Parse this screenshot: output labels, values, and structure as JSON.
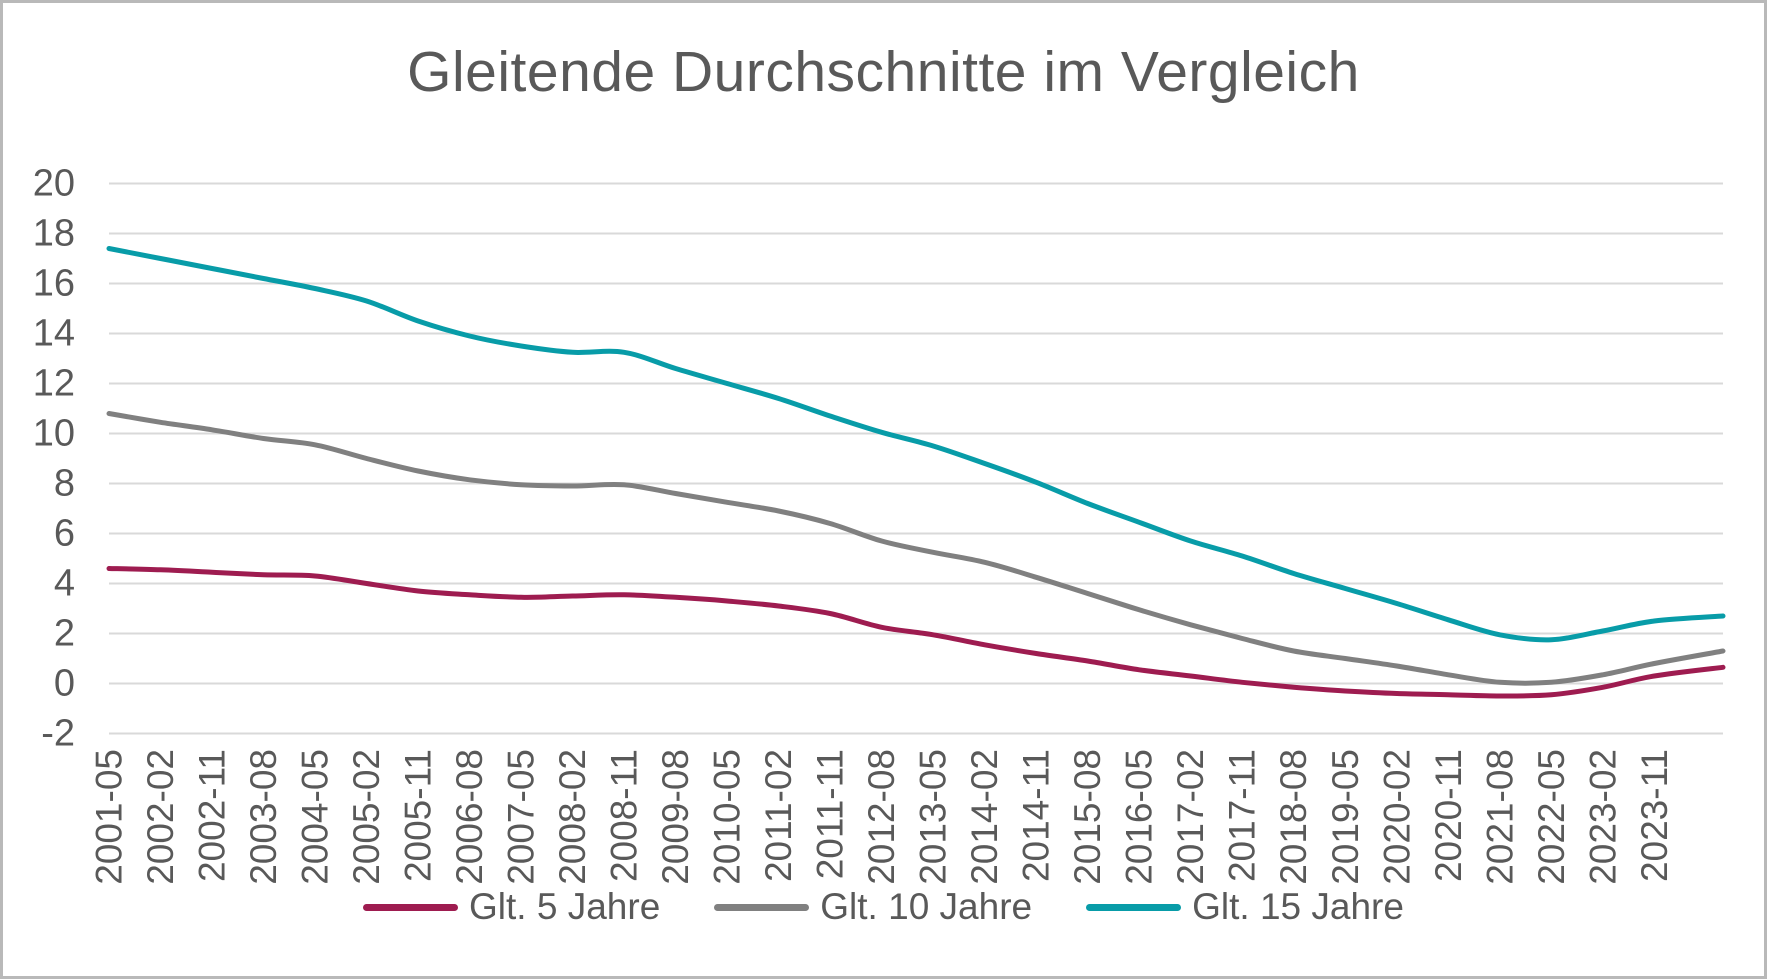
{
  "frame": {
    "background": "#ffffff",
    "border_color": "#b9b9b9"
  },
  "chart_data": {
    "type": "line",
    "title": "Gleitende Durchschnitte im Vergleich",
    "xlabel": "",
    "ylabel": "",
    "ylim": [
      -2,
      20
    ],
    "y_ticks": [
      20,
      18,
      16,
      14,
      12,
      10,
      8,
      6,
      4,
      2,
      0,
      -2
    ],
    "grid": true,
    "legend_position": "bottom",
    "text_color": "#595959",
    "grid_color": "#d9d9d9",
    "x_tick_labels": [
      "2001-05",
      "2002-02",
      "2002-11",
      "2003-08",
      "2004-05",
      "2005-02",
      "2005-11",
      "2006-08",
      "2007-05",
      "2008-02",
      "2008-11",
      "2009-08",
      "2010-05",
      "2011-02",
      "2011-11",
      "2012-08",
      "2013-05",
      "2014-02",
      "2014-11",
      "2015-08",
      "2016-05",
      "2017-02",
      "2017-11",
      "2018-08",
      "2019-05",
      "2020-02",
      "2020-11",
      "2021-08",
      "2022-05",
      "2023-02",
      "2023-11"
    ],
    "x_tick_months": [
      0,
      9,
      18,
      27,
      36,
      45,
      54,
      63,
      72,
      81,
      90,
      99,
      108,
      117,
      126,
      135,
      144,
      153,
      162,
      171,
      180,
      189,
      198,
      207,
      216,
      225,
      234,
      243,
      252,
      261,
      270
    ],
    "x_max_month": 282,
    "series": [
      {
        "name": "Glt. 5 Jahre",
        "color": "#9E1C50",
        "months": [
          0,
          9,
          18,
          27,
          36,
          45,
          54,
          63,
          72,
          81,
          90,
          99,
          108,
          117,
          126,
          135,
          144,
          153,
          162,
          171,
          180,
          189,
          198,
          207,
          216,
          225,
          234,
          243,
          252,
          261,
          270,
          282
        ],
        "values": [
          4.6,
          4.55,
          4.45,
          4.35,
          4.3,
          4.0,
          3.7,
          3.55,
          3.45,
          3.5,
          3.55,
          3.45,
          3.3,
          3.1,
          2.8,
          2.25,
          1.95,
          1.55,
          1.2,
          0.9,
          0.55,
          0.3,
          0.05,
          -0.15,
          -0.3,
          -0.4,
          -0.45,
          -0.5,
          -0.45,
          -0.15,
          0.3,
          0.65
        ]
      },
      {
        "name": "Glt. 10 Jahre",
        "color": "#808080",
        "months": [
          0,
          9,
          18,
          27,
          36,
          45,
          54,
          63,
          72,
          81,
          90,
          99,
          108,
          117,
          126,
          135,
          144,
          153,
          162,
          171,
          180,
          189,
          198,
          207,
          216,
          225,
          234,
          243,
          252,
          261,
          270,
          282
        ],
        "values": [
          10.8,
          10.45,
          10.15,
          9.8,
          9.55,
          9.0,
          8.5,
          8.15,
          7.95,
          7.9,
          7.95,
          7.6,
          7.25,
          6.9,
          6.4,
          5.7,
          5.25,
          4.85,
          4.25,
          3.6,
          2.95,
          2.35,
          1.8,
          1.3,
          1.0,
          0.7,
          0.35,
          0.05,
          0.05,
          0.35,
          0.8,
          1.3
        ]
      },
      {
        "name": "Glt. 15 Jahre",
        "color": "#089CA8",
        "months": [
          0,
          9,
          18,
          27,
          36,
          45,
          54,
          63,
          72,
          81,
          90,
          99,
          108,
          117,
          126,
          135,
          144,
          153,
          162,
          171,
          180,
          189,
          198,
          207,
          216,
          225,
          234,
          243,
          252,
          261,
          270,
          282
        ],
        "values": [
          17.4,
          17.0,
          16.6,
          16.2,
          15.8,
          15.3,
          14.5,
          13.9,
          13.5,
          13.25,
          13.25,
          12.6,
          12.0,
          11.4,
          10.7,
          10.05,
          9.5,
          8.8,
          8.05,
          7.2,
          6.45,
          5.7,
          5.1,
          4.4,
          3.8,
          3.2,
          2.55,
          1.95,
          1.75,
          2.1,
          2.5,
          2.7
        ]
      }
    ]
  }
}
